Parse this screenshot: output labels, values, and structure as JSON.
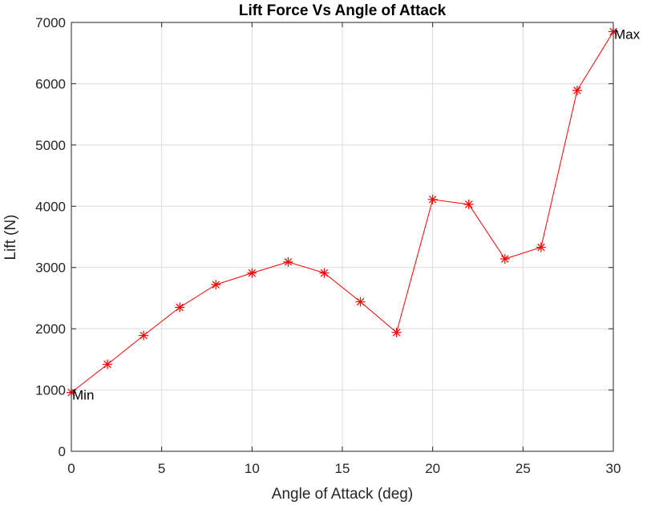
{
  "chart_data": {
    "type": "line",
    "title": "Lift Force Vs Angle of Attack",
    "xlabel": "Angle of Attack (deg)",
    "ylabel": "Lift (N)",
    "xlim": [
      0,
      30
    ],
    "ylim": [
      0,
      7000
    ],
    "xticks": [
      0,
      5,
      10,
      15,
      20,
      25,
      30
    ],
    "yticks": [
      0,
      1000,
      2000,
      3000,
      4000,
      5000,
      6000,
      7000
    ],
    "grid": true,
    "series": [
      {
        "color": "#ff0000",
        "marker": "asterisk",
        "x": [
          0,
          2,
          4,
          6,
          8,
          10,
          12,
          14,
          16,
          18,
          20,
          22,
          24,
          26,
          28,
          30
        ],
        "y": [
          960,
          1420,
          1890,
          2350,
          2720,
          2910,
          3090,
          2910,
          2440,
          1940,
          4110,
          4030,
          3140,
          3330,
          5890,
          6850
        ]
      }
    ],
    "annotations": [
      {
        "text": "Min",
        "x": 0,
        "y": 960
      },
      {
        "text": "Max",
        "x": 30,
        "y": 6850
      }
    ]
  }
}
